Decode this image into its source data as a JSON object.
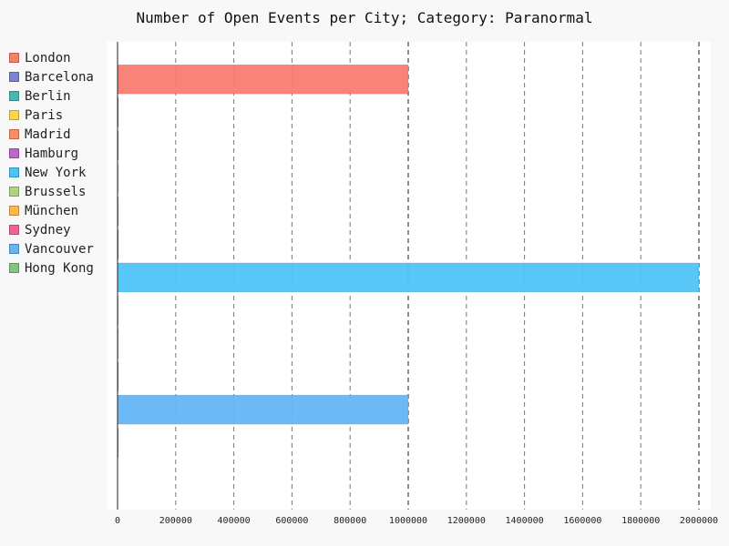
{
  "chart_data": {
    "type": "bar",
    "orientation": "horizontal",
    "title": "Number of Open Events per City; Category: Paranormal",
    "xlabel": "",
    "ylabel": "",
    "xlim": [
      0,
      2000000
    ],
    "xticks": [
      "0",
      "200000",
      "400000",
      "600000",
      "800000",
      "1000000",
      "1200000",
      "1400000",
      "1600000",
      "1800000",
      "2000000"
    ],
    "grid": "vertical dashed",
    "legend_position": "left",
    "categories": [
      "London",
      "Barcelona",
      "Berlin",
      "Paris",
      "Madrid",
      "Hamburg",
      "New York",
      "Brussels",
      "München",
      "Sydney",
      "Vancouver",
      "Hong Kong"
    ],
    "values": [
      1000000,
      0,
      0,
      0,
      0,
      0,
      2000000,
      0,
      0,
      0,
      1000000,
      0
    ],
    "colors": [
      "#f87c71",
      "#7986cb",
      "#4db6ac",
      "#ffd54f",
      "#ff8a65",
      "#ba68c8",
      "#4fc3f7",
      "#aed581",
      "#ffb74d",
      "#f06292",
      "#64b5f6",
      "#81c784"
    ]
  }
}
